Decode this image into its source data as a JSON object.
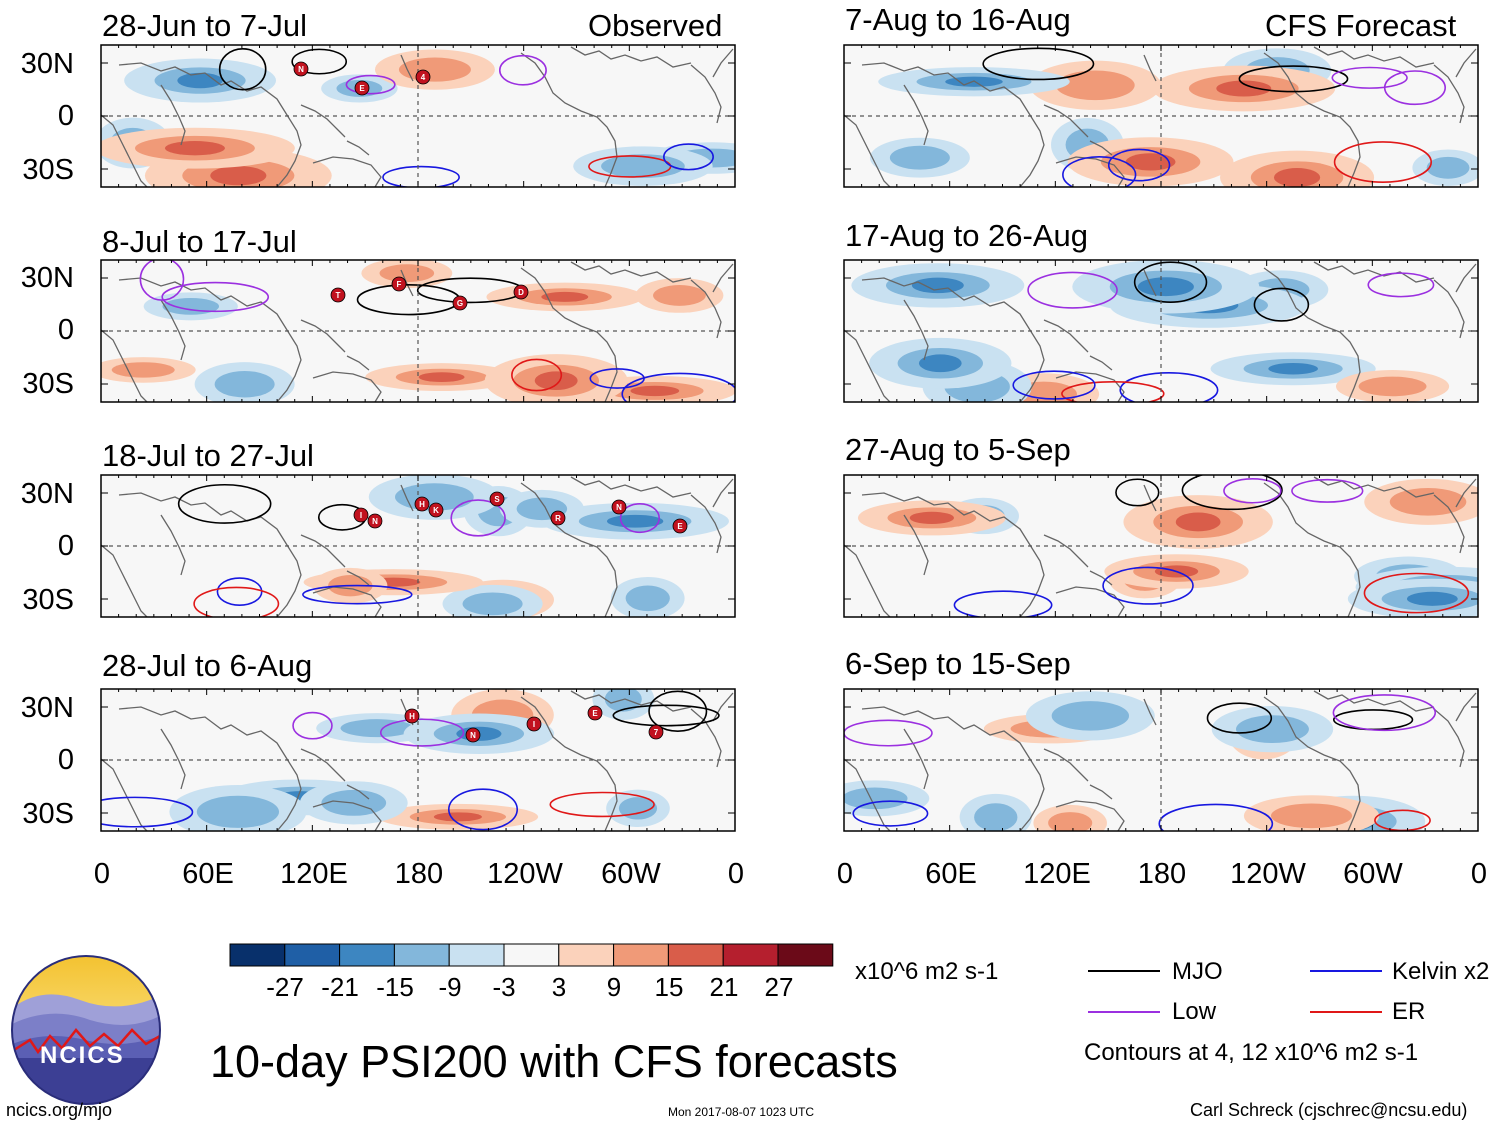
{
  "main_title": "10-day PSI200 with CFS forecasts",
  "columns": {
    "observed_label": "Observed",
    "forecast_label": "CFS Forecast"
  },
  "panels_observed": [
    {
      "period": "28-Jun to 7-Jul"
    },
    {
      "period": "8-Jul to 17-Jul"
    },
    {
      "period": "18-Jul to 27-Jul"
    },
    {
      "period": "28-Jul to 6-Aug"
    }
  ],
  "panels_forecast": [
    {
      "period": "7-Aug to 16-Aug"
    },
    {
      "period": "17-Aug to 26-Aug"
    },
    {
      "period": "27-Aug to 5-Sep"
    },
    {
      "period": "6-Sep to 15-Sep"
    }
  ],
  "lat_labels": [
    "30N",
    "0",
    "30S"
  ],
  "lon_labels": [
    "0",
    "60E",
    "120E",
    "180",
    "120W",
    "60W",
    "0"
  ],
  "colorbar": {
    "units": "x10^6 m2 s-1",
    "tick_labels": [
      "-27",
      "-21",
      "-15",
      "-9",
      "-3",
      "3",
      "9",
      "15",
      "21",
      "27"
    ],
    "colors": [
      "#08306b",
      "#1f5fa6",
      "#3d86c1",
      "#83b7db",
      "#c9e1f1",
      "#f7f7f7",
      "#fbd2bb",
      "#f09a78",
      "#d95d4a",
      "#b51f2e",
      "#6b0a18"
    ]
  },
  "legend": {
    "items": [
      {
        "label": "MJO",
        "color": "#000000"
      },
      {
        "label": "Kelvin x2",
        "color": "#1818e0"
      },
      {
        "label": "Low",
        "color": "#9b30e0"
      },
      {
        "label": "ER",
        "color": "#e01818"
      }
    ],
    "contour_note": "Contours at 4, 12 x10^6 m2 s-1"
  },
  "storm_markers": [
    {
      "panel": 0,
      "codes": [
        "N",
        "E",
        "4"
      ]
    },
    {
      "panel": 1,
      "codes": [
        "T",
        "F",
        "G",
        "D"
      ]
    },
    {
      "panel": 2,
      "codes": [
        "N",
        "K",
        "S",
        "R",
        "N",
        "E",
        "I",
        "H"
      ]
    },
    {
      "panel": 3,
      "codes": [
        "H",
        "N",
        "I",
        "E",
        "7"
      ]
    }
  ],
  "logo_text": "NCICS",
  "footer": {
    "url": "ncics.org/mjo",
    "timestamp": "Mon 2017-08-07 1023 UTC",
    "author": "Carl Schreck (cjschrec@ncsu.edu)"
  }
}
